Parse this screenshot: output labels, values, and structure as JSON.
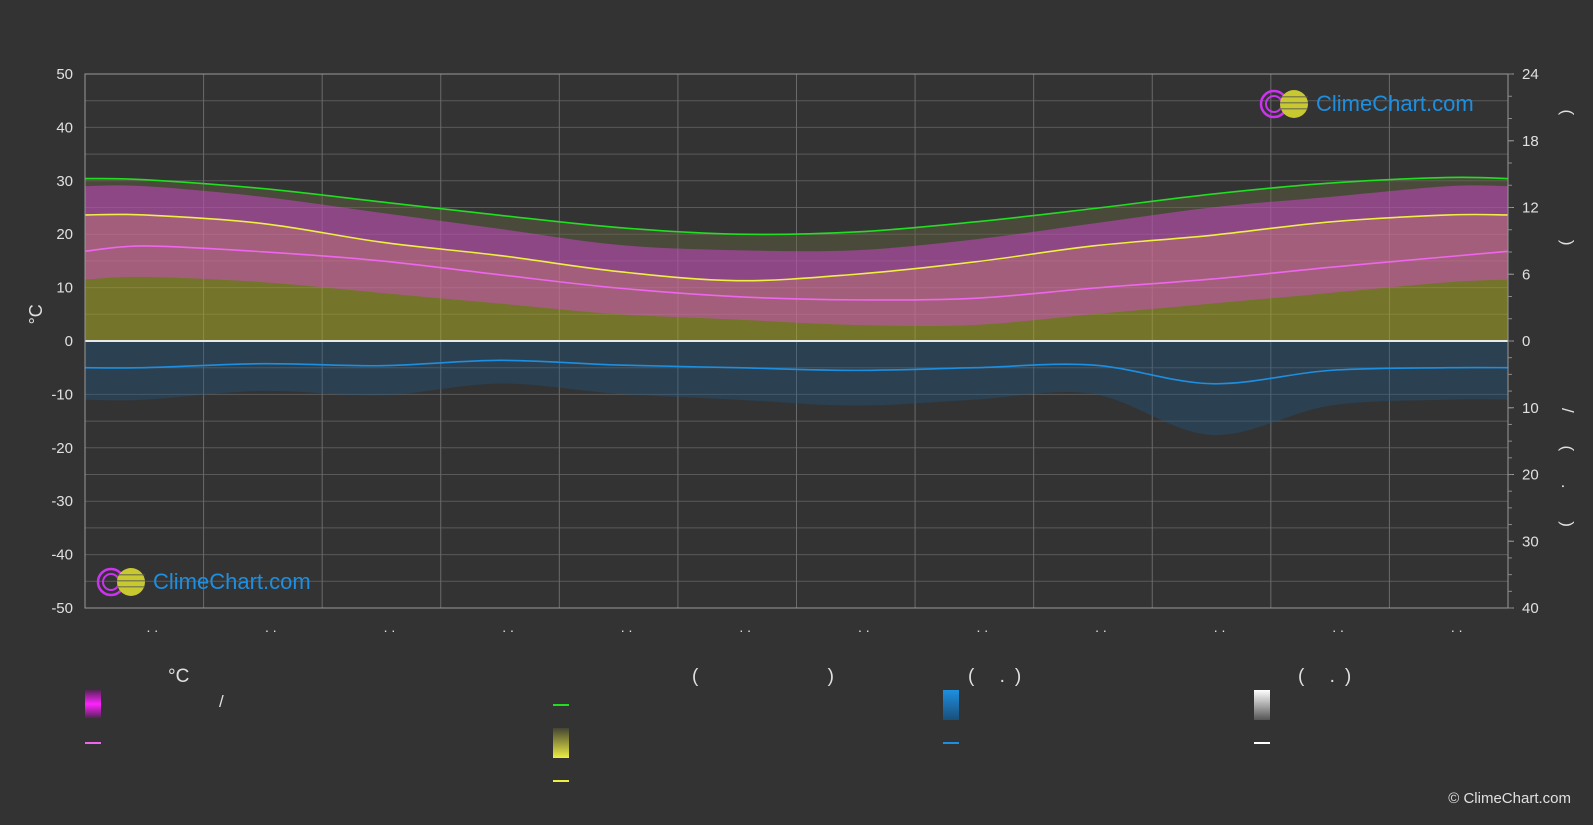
{
  "watermark": {
    "brand": "ClimeChart.com",
    "copyright": "© ClimeChart.com"
  },
  "colors": {
    "background": "#333333",
    "daylight": "#22dd22",
    "sunshine": "#eeee44",
    "max_temp": "#eeee44",
    "mean_temp": "#ee66ee",
    "temp_band": "#dd44dd",
    "sunshine_band": "#aaaa22",
    "precipitation": "#1e8fe0",
    "snow": "#dddddd"
  },
  "chart_data": {
    "type": "area",
    "months": 12,
    "x_tick_labels": [
      ". .",
      ". .",
      ". .",
      ". .",
      ". .",
      ". .",
      ". .",
      ". .",
      ". .",
      ". .",
      ". .",
      ". ."
    ],
    "y_left": {
      "label": "°C",
      "range": [
        -50,
        50
      ],
      "ticks": [
        50,
        40,
        30,
        20,
        10,
        0,
        -10,
        -20,
        -30,
        -40,
        -50
      ]
    },
    "y_right_top": {
      "label": "( )",
      "range": [
        0,
        24
      ],
      "ticks": [
        24,
        18,
        12,
        6,
        0
      ]
    },
    "y_right_bottom": {
      "label": "/ ( . )",
      "range": [
        0,
        40
      ],
      "ticks": [
        0,
        10,
        20,
        30,
        40
      ]
    },
    "grid": true,
    "series": {
      "daylight_hours": [
        14.5,
        13.7,
        12.5,
        11.3,
        10.2,
        9.6,
        9.8,
        10.7,
        11.9,
        13.2,
        14.2,
        14.7
      ],
      "sunshine_hours": [
        11.3,
        10.5,
        8.9,
        7.7,
        6.2,
        5.4,
        6.0,
        7.0,
        8.5,
        9.5,
        10.6,
        11.3
      ],
      "max_temperature": [
        23.6,
        22.0,
        18.5,
        16.0,
        13.0,
        11.3,
        12.5,
        14.8,
        17.8,
        19.8,
        22.3,
        23.6
      ],
      "mean_temperature": [
        17.8,
        16.7,
        15.0,
        12.4,
        9.9,
        8.3,
        7.7,
        8.0,
        9.9,
        11.6,
        13.8,
        15.8
      ],
      "temp_band_top": [
        29,
        27,
        24,
        21,
        18,
        17,
        17,
        19,
        22,
        25,
        27,
        29
      ],
      "temp_band_bottom": [
        12,
        11,
        9,
        7,
        5,
        4,
        3,
        3,
        5,
        7,
        9,
        11
      ],
      "precipitation_mm": [
        4.0,
        3.4,
        3.7,
        2.9,
        3.6,
        4.0,
        4.4,
        4.0,
        3.6,
        6.4,
        4.4,
        4.0
      ]
    },
    "legend": {
      "headers": [
        "°C",
        "( )",
        "( .)",
        "( .)"
      ],
      "temp_range_sep": "/"
    }
  }
}
